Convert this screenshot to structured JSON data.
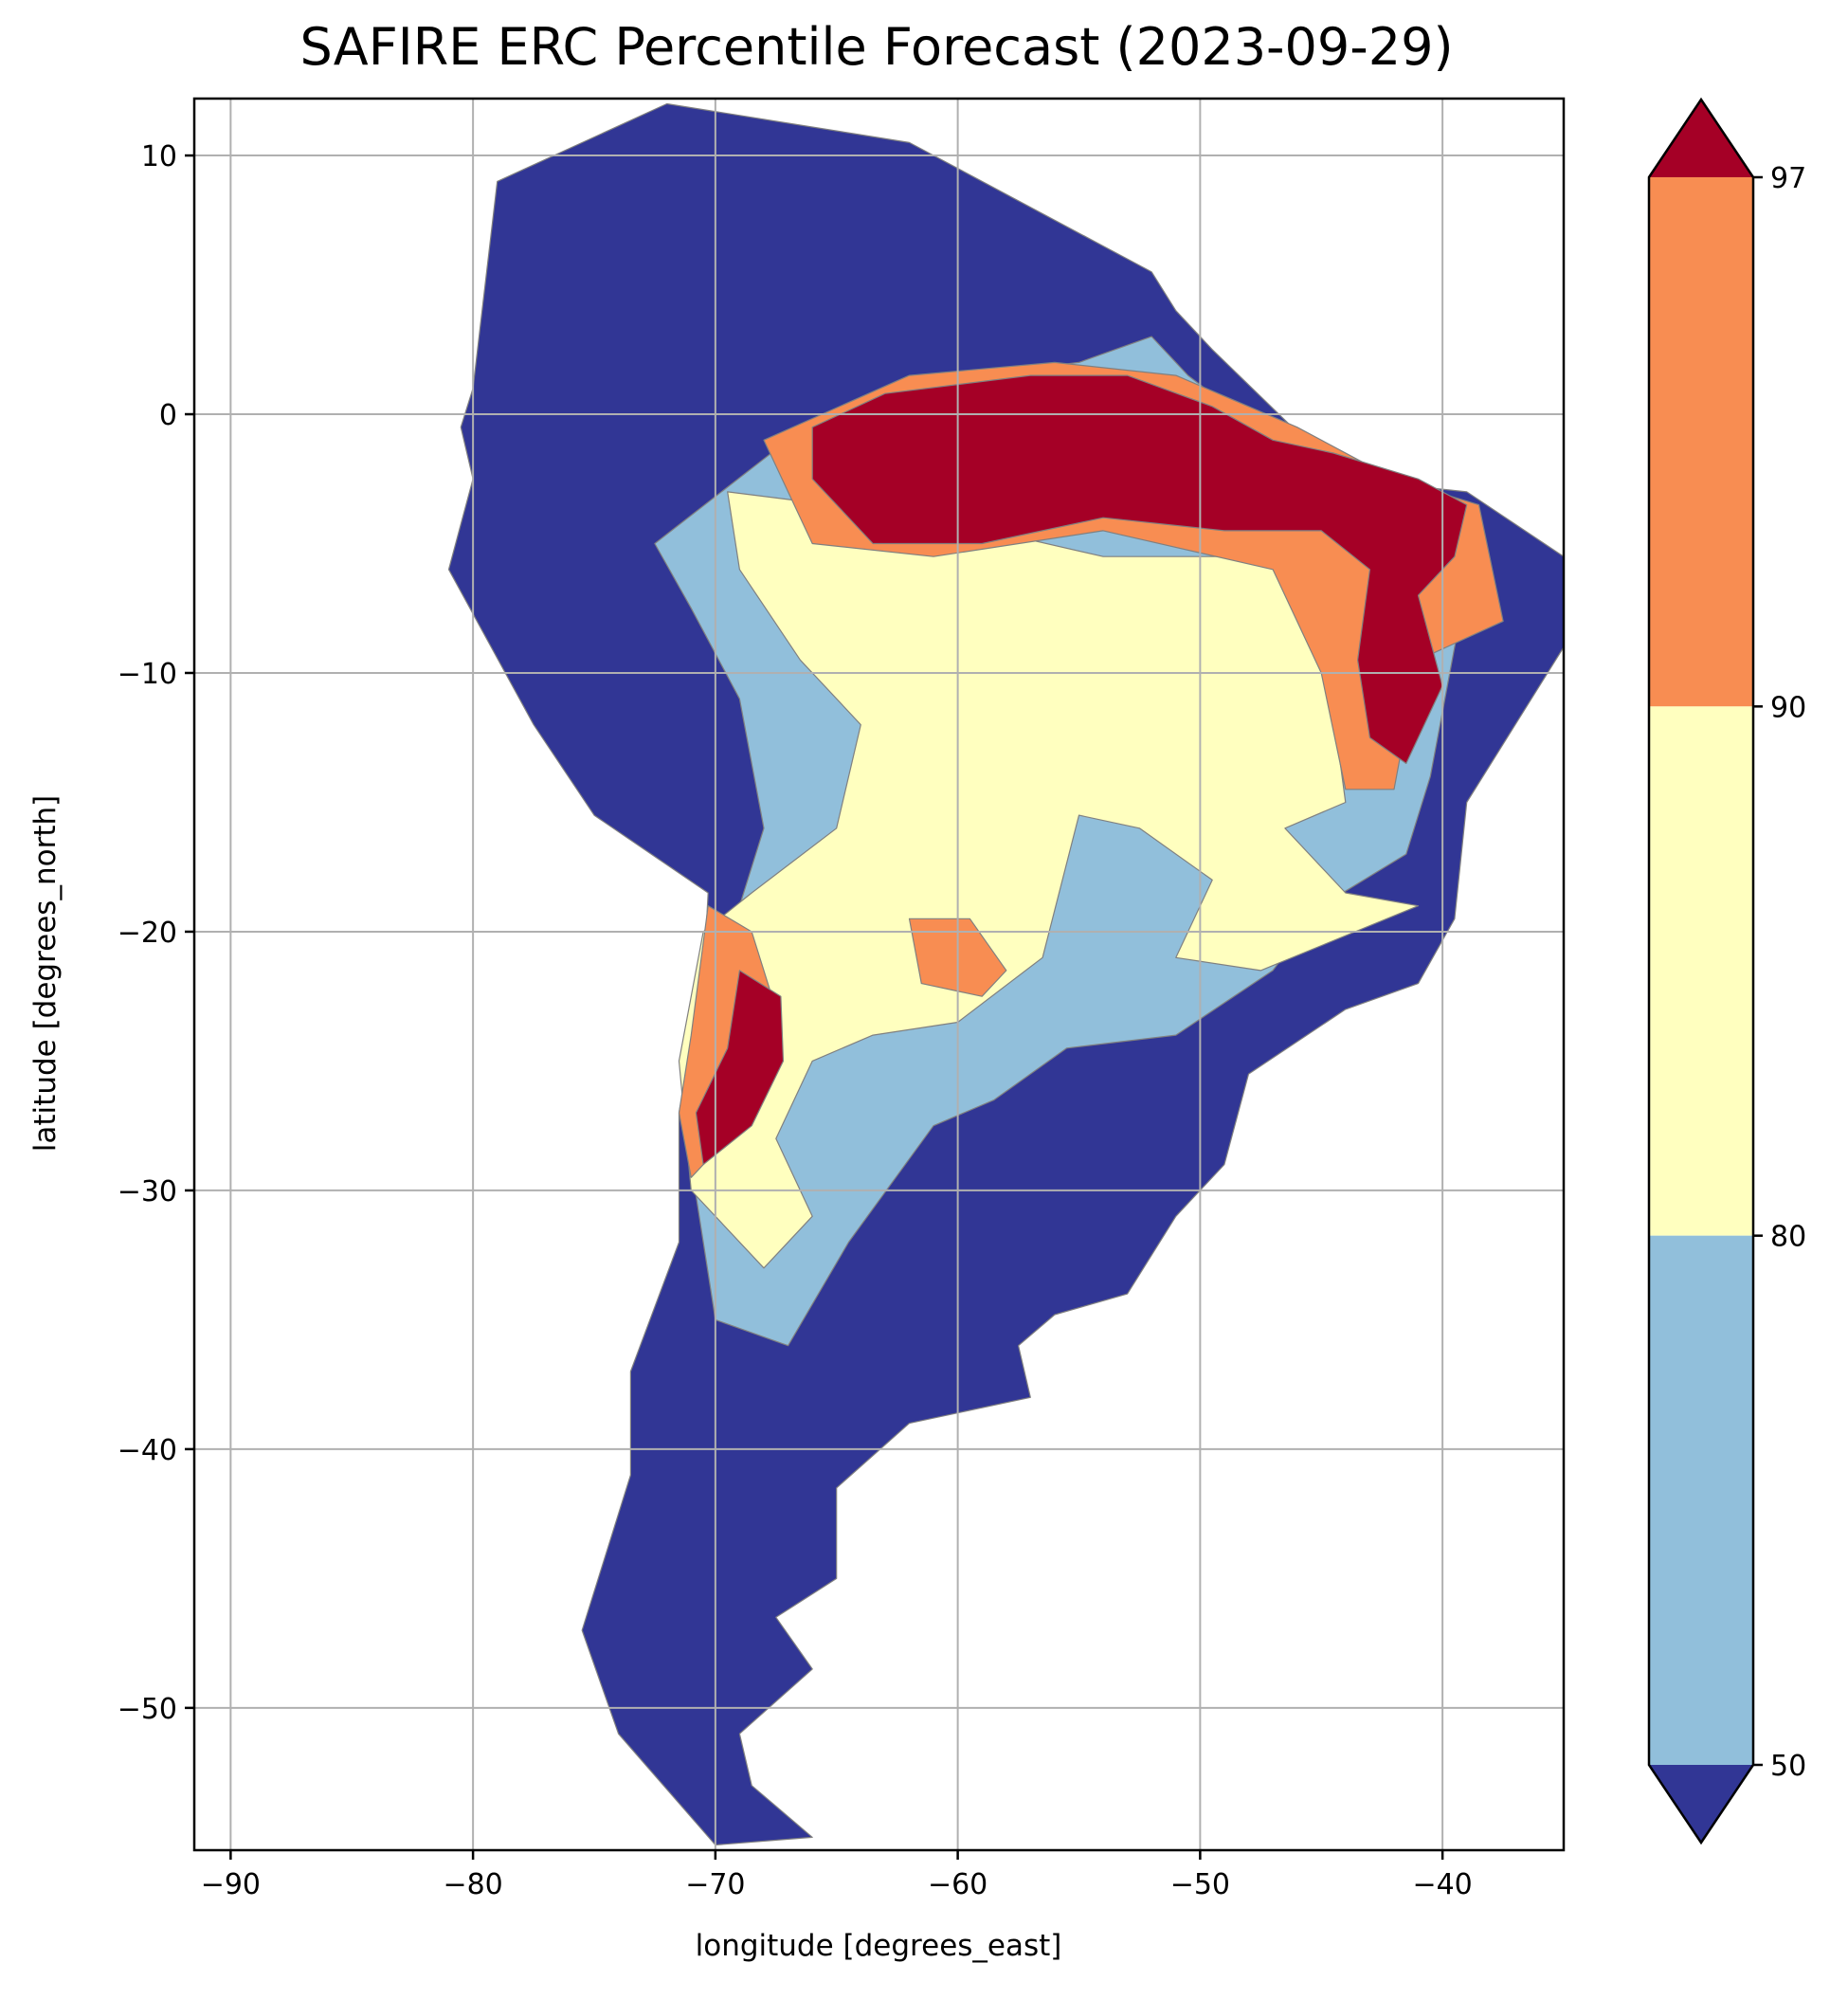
{
  "title": "SAFIRE ERC Percentile Forecast (2023-09-29)",
  "axes": {
    "xlabel": "longitude [degrees_east]",
    "ylabel": "latitude [degrees_north]",
    "xlim": [
      -91.5,
      -35
    ],
    "ylim": [
      -55.5,
      12.2
    ],
    "xticks": [
      -90,
      -80,
      -70,
      -60,
      -50,
      -40
    ],
    "yticks": [
      10,
      0,
      -10,
      -20,
      -30,
      -40,
      -50
    ],
    "xtick_labels": [
      "−90",
      "−80",
      "−70",
      "−60",
      "−50",
      "−40"
    ],
    "ytick_labels": [
      "10",
      "0",
      "−10",
      "−20",
      "−30",
      "−40",
      "−50"
    ],
    "grid": true
  },
  "colorbar": {
    "ticks": [
      "97",
      "90",
      "80",
      "50"
    ],
    "bins": [
      {
        "range": ">97",
        "color": "#a50026"
      },
      {
        "range": "90-97",
        "color": "#f88d52"
      },
      {
        "range": "80-90",
        "color": "#ffffbf"
      },
      {
        "range": "50-80",
        "color": "#91bfdb"
      },
      {
        "range": "<50",
        "color": "#313695"
      }
    ],
    "extend": "both"
  },
  "colors": {
    "land_boundary": "#808080",
    "grid": "#b0b0b0"
  },
  "chart_data": {
    "type": "heatmap",
    "title": "SAFIRE ERC Percentile Forecast (2023-09-29)",
    "xlabel": "longitude [degrees_east]",
    "ylabel": "latitude [degrees_north]",
    "xlim": [
      -91.5,
      -35
    ],
    "ylim": [
      -55.5,
      12.2
    ],
    "regions": [
      {
        "category": "<50",
        "color": "#313695",
        "polygon": [
          [
            -80,
            1
          ],
          [
            -79,
            9
          ],
          [
            -72,
            12
          ],
          [
            -62,
            10.5
          ],
          [
            -52,
            5.5
          ],
          [
            -51,
            4
          ],
          [
            -49.5,
            2.5
          ],
          [
            -44,
            -2.5
          ],
          [
            -39,
            -3
          ],
          [
            -35,
            -5.5
          ],
          [
            -35,
            -9
          ],
          [
            -39,
            -15
          ],
          [
            -39.5,
            -19.5
          ],
          [
            -41,
            -22
          ],
          [
            -44,
            -23
          ],
          [
            -48,
            -25.5
          ],
          [
            -49,
            -29
          ],
          [
            -51,
            -31
          ],
          [
            -53,
            -34
          ],
          [
            -56,
            -34.8
          ],
          [
            -57.5,
            -36
          ],
          [
            -57,
            -38
          ],
          [
            -62,
            -39
          ],
          [
            -65,
            -41.5
          ],
          [
            -65,
            -45
          ],
          [
            -67.5,
            -46.5
          ],
          [
            -66,
            -48.5
          ],
          [
            -69,
            -51
          ],
          [
            -68.5,
            -53
          ],
          [
            -66,
            -55
          ],
          [
            -70,
            -55.3
          ],
          [
            -74,
            -51
          ],
          [
            -75.5,
            -47
          ],
          [
            -73.5,
            -41
          ],
          [
            -73.5,
            -37
          ],
          [
            -71.5,
            -32
          ],
          [
            -71.5,
            -27
          ],
          [
            -70.5,
            -22
          ],
          [
            -70.3,
            -18.5
          ],
          [
            -75,
            -15.5
          ],
          [
            -77.5,
            -12
          ],
          [
            -81,
            -6
          ],
          [
            -80,
            -2.5
          ],
          [
            -80.5,
            -0.5
          ],
          [
            -80,
            1
          ]
        ]
      },
      {
        "category": "50-80",
        "color": "#91bfdb",
        "polygon": [
          [
            -67,
            -1
          ],
          [
            -62,
            1.2
          ],
          [
            -55,
            2
          ],
          [
            -52,
            3
          ],
          [
            -50.5,
            1.5
          ],
          [
            -47,
            -1
          ],
          [
            -43,
            -2.5
          ],
          [
            -40,
            -3
          ],
          [
            -38.5,
            -4.5
          ],
          [
            -39.5,
            -9
          ],
          [
            -40.5,
            -14
          ],
          [
            -41.5,
            -17
          ],
          [
            -45,
            -19
          ],
          [
            -47,
            -21.5
          ],
          [
            -51,
            -24
          ],
          [
            -55.5,
            -24.5
          ],
          [
            -58.5,
            -26.5
          ],
          [
            -61,
            -27.5
          ],
          [
            -64.5,
            -32
          ],
          [
            -67,
            -36
          ],
          [
            -70,
            -35
          ],
          [
            -71,
            -29
          ],
          [
            -70.5,
            -23
          ],
          [
            -69,
            -19
          ],
          [
            -68,
            -16
          ],
          [
            -69,
            -11
          ],
          [
            -71,
            -7.5
          ],
          [
            -72.5,
            -5
          ],
          [
            -67,
            -1
          ]
        ]
      },
      {
        "category": "80-90",
        "color": "#ffffbf",
        "polygon": [
          [
            -69.5,
            -3
          ],
          [
            -61,
            -4
          ],
          [
            -54,
            -5.5
          ],
          [
            -47,
            -5.5
          ],
          [
            -44,
            -4.5
          ],
          [
            -43,
            -7.5
          ],
          [
            -44.5,
            -11.5
          ],
          [
            -44,
            -15
          ],
          [
            -46.5,
            -16
          ],
          [
            -44,
            -18.5
          ],
          [
            -41,
            -19
          ],
          [
            -47.5,
            -21.5
          ],
          [
            -51,
            -21
          ],
          [
            -49.5,
            -18
          ],
          [
            -52.5,
            -16
          ],
          [
            -55,
            -15.5
          ],
          [
            -56.5,
            -21
          ],
          [
            -60,
            -23.5
          ],
          [
            -63.5,
            -24
          ],
          [
            -66,
            -25
          ],
          [
            -67.5,
            -28
          ],
          [
            -66,
            -31
          ],
          [
            -68,
            -33
          ],
          [
            -71,
            -30
          ],
          [
            -71.5,
            -25
          ],
          [
            -70.5,
            -20
          ],
          [
            -68.5,
            -18.5
          ],
          [
            -65,
            -16
          ],
          [
            -64,
            -12
          ],
          [
            -66.5,
            -9.5
          ],
          [
            -69,
            -6
          ],
          [
            -69.5,
            -3
          ]
        ]
      },
      {
        "category": "90-97",
        "color": "#f88d52",
        "polygon": [
          [
            -68,
            -1
          ],
          [
            -62,
            1.5
          ],
          [
            -56,
            2
          ],
          [
            -51,
            1.5
          ],
          [
            -46,
            -0.5
          ],
          [
            -42,
            -2.5
          ],
          [
            -38.5,
            -3.5
          ],
          [
            -37.5,
            -8
          ],
          [
            -41,
            -9.5
          ],
          [
            -42,
            -14.5
          ],
          [
            -44,
            -14.5
          ],
          [
            -45,
            -10
          ],
          [
            -47,
            -6
          ],
          [
            -54,
            -4.5
          ],
          [
            -61,
            -5.5
          ],
          [
            -66,
            -5
          ],
          [
            -68,
            -1
          ]
        ]
      },
      {
        "category": "90-97",
        "color": "#f88d52",
        "polygon": [
          [
            -70.3,
            -19
          ],
          [
            -68.5,
            -20
          ],
          [
            -67.5,
            -23
          ],
          [
            -68,
            -26
          ],
          [
            -69.5,
            -28
          ],
          [
            -71,
            -29.5
          ],
          [
            -71.5,
            -27
          ],
          [
            -71,
            -24
          ],
          [
            -70.3,
            -19
          ]
        ]
      },
      {
        "category": "90-97",
        "color": "#f88d52",
        "polygon": [
          [
            -62,
            -19.5
          ],
          [
            -59.5,
            -19.5
          ],
          [
            -58,
            -21.5
          ],
          [
            -59,
            -22.5
          ],
          [
            -61.5,
            -22
          ],
          [
            -62,
            -19.5
          ]
        ]
      },
      {
        "category": ">97",
        "color": "#a50026",
        "polygon": [
          [
            -66,
            -0.5
          ],
          [
            -63,
            0.8
          ],
          [
            -57,
            1.5
          ],
          [
            -53,
            1.5
          ],
          [
            -49.5,
            0.3
          ],
          [
            -47,
            -1
          ],
          [
            -44.5,
            -1.5
          ],
          [
            -41,
            -2.5
          ],
          [
            -39,
            -3.5
          ],
          [
            -39.5,
            -5.5
          ],
          [
            -41,
            -7
          ],
          [
            -40,
            -10.5
          ],
          [
            -41.5,
            -13.5
          ],
          [
            -43,
            -12.5
          ],
          [
            -43.5,
            -9.5
          ],
          [
            -43,
            -6
          ],
          [
            -45,
            -4.5
          ],
          [
            -49,
            -4.5
          ],
          [
            -54,
            -4
          ],
          [
            -59,
            -5
          ],
          [
            -63.5,
            -5
          ],
          [
            -66,
            -2.5
          ],
          [
            -66,
            -0.5
          ]
        ]
      },
      {
        "category": ">97",
        "color": "#a50026",
        "polygon": [
          [
            -69,
            -21.5
          ],
          [
            -67.3,
            -22.5
          ],
          [
            -67.2,
            -25
          ],
          [
            -68.5,
            -27.5
          ],
          [
            -70.5,
            -29
          ],
          [
            -70.8,
            -27
          ],
          [
            -69.5,
            -24.5
          ],
          [
            -69,
            -21.5
          ]
        ]
      }
    ]
  }
}
